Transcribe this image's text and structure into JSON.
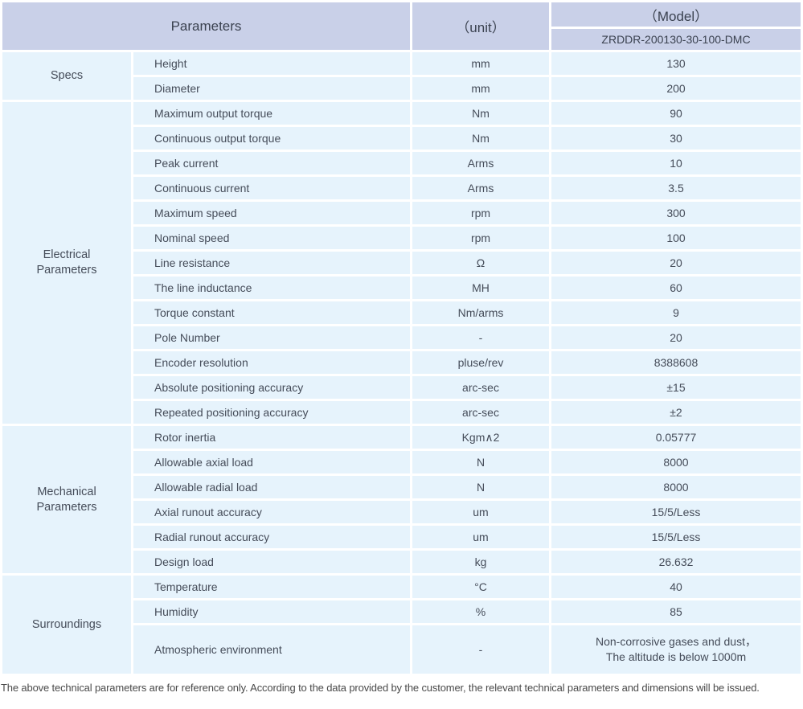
{
  "header": {
    "parameters_label": "Parameters",
    "unit_label": "（unit）",
    "model_label": "（Model）",
    "model_number": "ZRDDR-200130-30-100-DMC"
  },
  "groups": [
    {
      "name": "Specs",
      "rows": [
        {
          "param": "Height",
          "unit": "mm",
          "value": "130"
        },
        {
          "param": "Diameter",
          "unit": "mm",
          "value": "200"
        }
      ]
    },
    {
      "name": "Electrical Parameters",
      "rows": [
        {
          "param": "Maximum output torque",
          "unit": "Nm",
          "value": "90"
        },
        {
          "param": "Continuous output torque",
          "unit": "Nm",
          "value": "30"
        },
        {
          "param": "Peak current",
          "unit": "Arms",
          "value": "10"
        },
        {
          "param": "Continuous current",
          "unit": "Arms",
          "value": "3.5"
        },
        {
          "param": "Maximum speed",
          "unit": "rpm",
          "value": "300"
        },
        {
          "param": "Nominal speed",
          "unit": "rpm",
          "value": "100"
        },
        {
          "param": "Line resistance",
          "unit": "Ω",
          "value": "20"
        },
        {
          "param": "The line inductance",
          "unit": "MH",
          "value": "60"
        },
        {
          "param": "Torque constant",
          "unit": "Nm/arms",
          "value": "9"
        },
        {
          "param": "Pole Number",
          "unit": "-",
          "value": "20"
        },
        {
          "param": "Encoder resolution",
          "unit": "pluse/rev",
          "value": "8388608"
        },
        {
          "param": "Absolute positioning accuracy",
          "unit": "arc-sec",
          "value": "±15"
        },
        {
          "param": "Repeated positioning accuracy",
          "unit": "arc-sec",
          "value": "±2"
        }
      ]
    },
    {
      "name": "Mechanical Parameters",
      "rows": [
        {
          "param": "Rotor inertia",
          "unit": "Kgm∧2",
          "value": "0.05777"
        },
        {
          "param": "Allowable axial load",
          "unit": "N",
          "value": "8000"
        },
        {
          "param": "Allowable radial load",
          "unit": "N",
          "value": "8000"
        },
        {
          "param": "Axial runout accuracy",
          "unit": "um",
          "value": "15/5/Less"
        },
        {
          "param": "Radial runout accuracy",
          "unit": "um",
          "value": "15/5/Less"
        },
        {
          "param": "Design load",
          "unit": "kg",
          "value": "26.632"
        }
      ]
    },
    {
      "name": "Surroundings",
      "rows": [
        {
          "param": "Temperature",
          "unit": "°C",
          "value": "40"
        },
        {
          "param": "Humidity",
          "unit": "%",
          "value": "85"
        },
        {
          "param": "Atmospheric environment",
          "unit": "-",
          "value": [
            "Non-corrosive gases and dust，",
            "The altitude is below 1000m"
          ]
        }
      ]
    }
  ],
  "footer_note": "The above technical parameters are for reference only. According to the data provided by the customer, the relevant technical parameters and dimensions will be issued.",
  "colors": {
    "header_bg": "#c9d0e8",
    "row_bg": "#e6f3fc",
    "text": "#454c59",
    "footer_text": "#4a4a4a"
  }
}
